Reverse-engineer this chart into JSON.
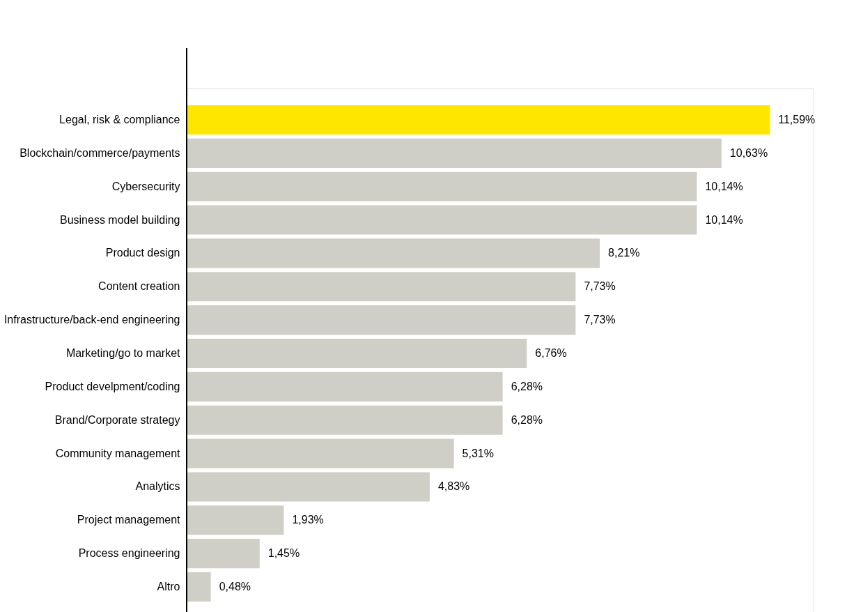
{
  "chart_data": {
    "type": "bar",
    "orientation": "horizontal",
    "categories": [
      "Legal, risk & compliance",
      "Blockchain/commerce/payments",
      "Cybersecurity",
      "Business model building",
      "Product design",
      "Content creation",
      "Infrastructure/back-end engineering",
      "Marketing/go to market",
      "Product develpment/coding",
      "Brand/Corporate strategy",
      "Community management",
      "Analytics",
      "Project management",
      "Process engineering",
      "Altro"
    ],
    "values": [
      11.59,
      10.63,
      10.14,
      10.14,
      8.21,
      7.73,
      7.73,
      6.76,
      6.28,
      6.28,
      5.31,
      4.83,
      1.93,
      1.45,
      0.48
    ],
    "colors": [
      "#ffe600",
      "#cfcfc7",
      "#cfcfc7",
      "#cfcfc7",
      "#cfcfc7",
      "#cfcfc7",
      "#cfcfc7",
      "#cfcfc7",
      "#cfcfc7",
      "#cfcfc7",
      "#cfcfc7",
      "#cfcfc7",
      "#cfcfc7",
      "#cfcfc7",
      "#cfcfc7"
    ],
    "value_labels": [
      "11,59%",
      "10,63%",
      "10,14%",
      "10,14%",
      "8,21%",
      "7,73%",
      "7,73%",
      "6,76%",
      "6,28%",
      "6,28%",
      "5,31%",
      "4,83%",
      "1,93%",
      "1,45%",
      "0,48%"
    ]
  }
}
